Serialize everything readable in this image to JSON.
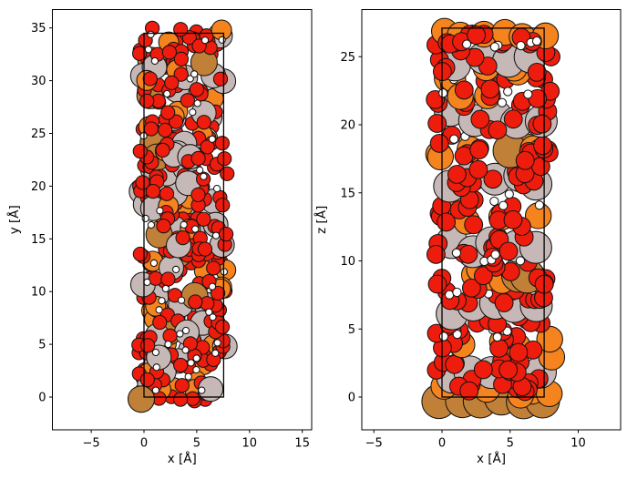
{
  "figure": {
    "background": "#ffffff",
    "outline_color": "#141414",
    "axis_color": "#000000",
    "cell_box_color": "#000000"
  },
  "atom_types": {
    "red": {
      "color": "#EE1C0D",
      "radius": 0.66
    },
    "orange": {
      "color": "#F5831E",
      "radius": 0.95
    },
    "gray": {
      "color": "#C6B8B6",
      "radius": 1.17
    },
    "brown": {
      "color": "#C18038",
      "radius": 1.25
    },
    "white": {
      "color": "#FFFFFF",
      "radius": 0.31
    }
  },
  "chart_data": [
    {
      "type": "scatter",
      "projection": "x-y",
      "xlabel": "x [Å]",
      "ylabel": "y [Å]",
      "xlim": [
        -8.6,
        15.8
      ],
      "ylim": [
        -3.1,
        36.7
      ],
      "xticks": [
        {
          "v": -5,
          "l": "−5"
        },
        {
          "v": 0,
          "l": "0"
        },
        {
          "v": 5,
          "l": "5"
        },
        {
          "v": 10,
          "l": "10"
        },
        {
          "v": 15,
          "l": "15"
        }
      ],
      "yticks": [
        {
          "v": 0,
          "l": "0"
        },
        {
          "v": 5,
          "l": "5"
        },
        {
          "v": 10,
          "l": "10"
        },
        {
          "v": 15,
          "l": "15"
        },
        {
          "v": 20,
          "l": "20"
        },
        {
          "v": 25,
          "l": "25"
        },
        {
          "v": 30,
          "l": "30"
        },
        {
          "v": 35,
          "l": "35"
        }
      ],
      "cell": {
        "x0": 0,
        "y0": 0,
        "w": 7.55,
        "h": 34.5
      },
      "seed": 11,
      "groups": [
        {
          "type": "gray",
          "count": 16,
          "x": [
            -0.3,
            7.8
          ],
          "y": [
            0.0,
            34.5
          ]
        },
        {
          "type": "orange",
          "count": 13,
          "x": [
            -0.3,
            7.8
          ],
          "y": [
            0.0,
            34.5
          ]
        },
        {
          "type": "red",
          "count": 70,
          "x": [
            -0.5,
            7.9
          ],
          "y": [
            -0.4,
            34.8
          ]
        },
        {
          "type": "gray",
          "count": 15,
          "x": [
            -0.3,
            7.8
          ],
          "y": [
            0.0,
            34.6
          ]
        },
        {
          "type": "brown",
          "count": 6,
          "x": [
            0.0,
            7.5
          ],
          "y": [
            1.0,
            34.0
          ]
        },
        {
          "type": "orange",
          "count": 13,
          "x": [
            -0.3,
            7.8
          ],
          "y": [
            0.0,
            34.6
          ]
        },
        {
          "type": "red",
          "count": 70,
          "x": [
            -0.5,
            7.9
          ],
          "y": [
            -0.4,
            34.9
          ]
        },
        {
          "type": "gray",
          "count": 14,
          "x": [
            -0.2,
            7.7
          ],
          "y": [
            0.3,
            34.5
          ]
        },
        {
          "type": "brown",
          "count": 6,
          "x": [
            0.0,
            7.5
          ],
          "y": [
            1.0,
            34.0
          ]
        },
        {
          "type": "orange",
          "count": 12,
          "x": [
            -0.3,
            7.8
          ],
          "y": [
            0.3,
            34.7
          ]
        },
        {
          "type": "red",
          "count": 70,
          "x": [
            -0.5,
            7.9
          ],
          "y": [
            -0.3,
            34.9
          ]
        },
        {
          "type": "gray",
          "count": 12,
          "x": [
            -0.2,
            7.7
          ],
          "y": [
            0.5,
            34.5
          ]
        },
        {
          "type": "red",
          "count": 50,
          "x": [
            -0.4,
            7.8
          ],
          "y": [
            0.0,
            35.0
          ]
        },
        {
          "type": "brown",
          "count": 1,
          "x": [
            -0.26,
            -0.26
          ],
          "y": [
            -0.2,
            -0.2
          ]
        },
        {
          "type": "orange",
          "count": 1,
          "x": [
            7.35,
            7.35
          ],
          "y": [
            34.8,
            34.8
          ]
        },
        {
          "type": "white",
          "count": 46,
          "x": [
            -0.2,
            7.7
          ],
          "y": [
            0.4,
            34.6
          ]
        }
      ]
    },
    {
      "type": "scatter",
      "projection": "x-z",
      "xlabel": "x [Å]",
      "ylabel": "z [Å]",
      "xlim": [
        -5.9,
        13.1
      ],
      "ylim": [
        -2.4,
        28.5
      ],
      "xticks": [
        {
          "v": -5,
          "l": "−5"
        },
        {
          "v": 0,
          "l": "0"
        },
        {
          "v": 5,
          "l": "5"
        },
        {
          "v": 10,
          "l": "10"
        }
      ],
      "yticks": [
        {
          "v": 0,
          "l": "0"
        },
        {
          "v": 5,
          "l": "5"
        },
        {
          "v": 10,
          "l": "10"
        },
        {
          "v": 15,
          "l": "15"
        },
        {
          "v": 20,
          "l": "20"
        },
        {
          "v": 25,
          "l": "25"
        }
      ],
      "cell": {
        "x0": 0,
        "y0": 0,
        "w": 7.5,
        "h": 27.1
      },
      "seed": 23,
      "groups": [
        {
          "type": "brown",
          "count": 6,
          "x": [
            -0.75,
            8.0
          ],
          "y": [
            -0.35,
            -0.05
          ],
          "even": true
        },
        {
          "type": "orange",
          "count": 5,
          "x": [
            -0.6,
            8.0
          ],
          "y": [
            0.1,
            0.8
          ]
        },
        {
          "type": "gray",
          "count": 5,
          "x": [
            -0.2,
            7.8
          ],
          "y": [
            1.3,
            2.0
          ],
          "even": true
        },
        {
          "type": "red",
          "count": 14,
          "x": [
            -0.5,
            8.0
          ],
          "y": [
            0.4,
            1.4
          ]
        },
        {
          "type": "red",
          "count": 12,
          "x": [
            -0.5,
            8.0
          ],
          "y": [
            1.8,
            2.7
          ]
        },
        {
          "type": "orange",
          "count": 6,
          "x": [
            -0.6,
            8.1
          ],
          "y": [
            2.9,
            4.6
          ]
        },
        {
          "type": "red",
          "count": 14,
          "x": [
            -0.5,
            8.0
          ],
          "y": [
            3.1,
            5.0
          ]
        },
        {
          "type": "white",
          "count": 6,
          "x": [
            0.0,
            7.6
          ],
          "y": [
            4.3,
            5.6
          ]
        },
        {
          "type": "red",
          "count": 10,
          "x": [
            -0.5,
            8.0
          ],
          "y": [
            5.2,
            6.1
          ]
        },
        {
          "type": "gray",
          "count": 5,
          "x": [
            -0.2,
            7.9
          ],
          "y": [
            6.0,
            6.9
          ],
          "even": true
        },
        {
          "type": "red",
          "count": 12,
          "x": [
            -0.5,
            8.0
          ],
          "y": [
            6.9,
            7.9
          ]
        },
        {
          "type": "white",
          "count": 5,
          "x": [
            0.0,
            7.6
          ],
          "y": [
            7.3,
            8.2
          ]
        },
        {
          "type": "orange",
          "count": 5,
          "x": [
            -0.6,
            8.1
          ],
          "y": [
            8.4,
            9.6
          ]
        },
        {
          "type": "brown",
          "count": 2,
          "x": [
            1.5,
            6.5
          ],
          "y": [
            8.8,
            9.3
          ]
        },
        {
          "type": "red",
          "count": 12,
          "x": [
            -0.5,
            8.0
          ],
          "y": [
            7.9,
            10.0
          ]
        },
        {
          "type": "gray",
          "count": 5,
          "x": [
            -0.3,
            7.9
          ],
          "y": [
            10.4,
            11.6
          ],
          "even": true
        },
        {
          "type": "red",
          "count": 12,
          "x": [
            -0.5,
            8.0
          ],
          "y": [
            9.8,
            12.0
          ]
        },
        {
          "type": "white",
          "count": 5,
          "x": [
            0.0,
            7.6
          ],
          "y": [
            9.9,
            10.6
          ]
        },
        {
          "type": "orange",
          "count": 5,
          "x": [
            -0.6,
            8.1
          ],
          "y": [
            12.8,
            14.4
          ]
        },
        {
          "type": "red",
          "count": 14,
          "x": [
            -0.5,
            8.0
          ],
          "y": [
            12.2,
            14.7
          ]
        },
        {
          "type": "white",
          "count": 4,
          "x": [
            0.0,
            7.6
          ],
          "y": [
            14.0,
            14.9
          ]
        },
        {
          "type": "gray",
          "count": 5,
          "x": [
            -0.2,
            7.9
          ],
          "y": [
            15.3,
            16.3
          ],
          "even": true
        },
        {
          "type": "red",
          "count": 12,
          "x": [
            -0.5,
            8.0
          ],
          "y": [
            14.8,
            17.0
          ]
        },
        {
          "type": "brown",
          "count": 2,
          "x": [
            4.0,
            7.6
          ],
          "y": [
            17.6,
            18.4
          ]
        },
        {
          "type": "orange",
          "count": 5,
          "x": [
            -0.6,
            8.1
          ],
          "y": [
            17.4,
            18.7
          ]
        },
        {
          "type": "red",
          "count": 14,
          "x": [
            -0.5,
            8.0
          ],
          "y": [
            16.9,
            19.4
          ]
        },
        {
          "type": "white",
          "count": 5,
          "x": [
            0.0,
            7.6
          ],
          "y": [
            18.8,
            19.6
          ]
        },
        {
          "type": "gray",
          "count": 5,
          "x": [
            -0.3,
            7.9
          ],
          "y": [
            20.0,
            21.2
          ],
          "even": true
        },
        {
          "type": "red",
          "count": 12,
          "x": [
            -0.5,
            8.0
          ],
          "y": [
            19.5,
            21.7
          ]
        },
        {
          "type": "orange",
          "count": 5,
          "x": [
            -0.6,
            8.1
          ],
          "y": [
            21.9,
            23.4
          ]
        },
        {
          "type": "red",
          "count": 14,
          "x": [
            -0.5,
            8.0
          ],
          "y": [
            21.7,
            23.9
          ]
        },
        {
          "type": "white",
          "count": 5,
          "x": [
            0.0,
            7.6
          ],
          "y": [
            21.6,
            23.4
          ]
        },
        {
          "type": "orange",
          "count": 3,
          "x": [
            0.5,
            7.9
          ],
          "y": [
            23.8,
            24.5
          ]
        },
        {
          "type": "gray",
          "count": 4,
          "x": [
            0.2,
            7.6
          ],
          "y": [
            24.3,
            25.3
          ],
          "even": true
        },
        {
          "type": "red",
          "count": 14,
          "x": [
            -0.5,
            8.0
          ],
          "y": [
            23.8,
            26.2
          ]
        },
        {
          "type": "orange",
          "count": 6,
          "x": [
            -0.6,
            8.1
          ],
          "y": [
            26.4,
            27.0
          ],
          "even": true
        },
        {
          "type": "red",
          "count": 9,
          "x": [
            -0.4,
            7.9
          ],
          "y": [
            25.9,
            26.7
          ]
        },
        {
          "type": "white",
          "count": 6,
          "x": [
            0.0,
            7.6
          ],
          "y": [
            25.7,
            26.5
          ]
        }
      ]
    }
  ]
}
